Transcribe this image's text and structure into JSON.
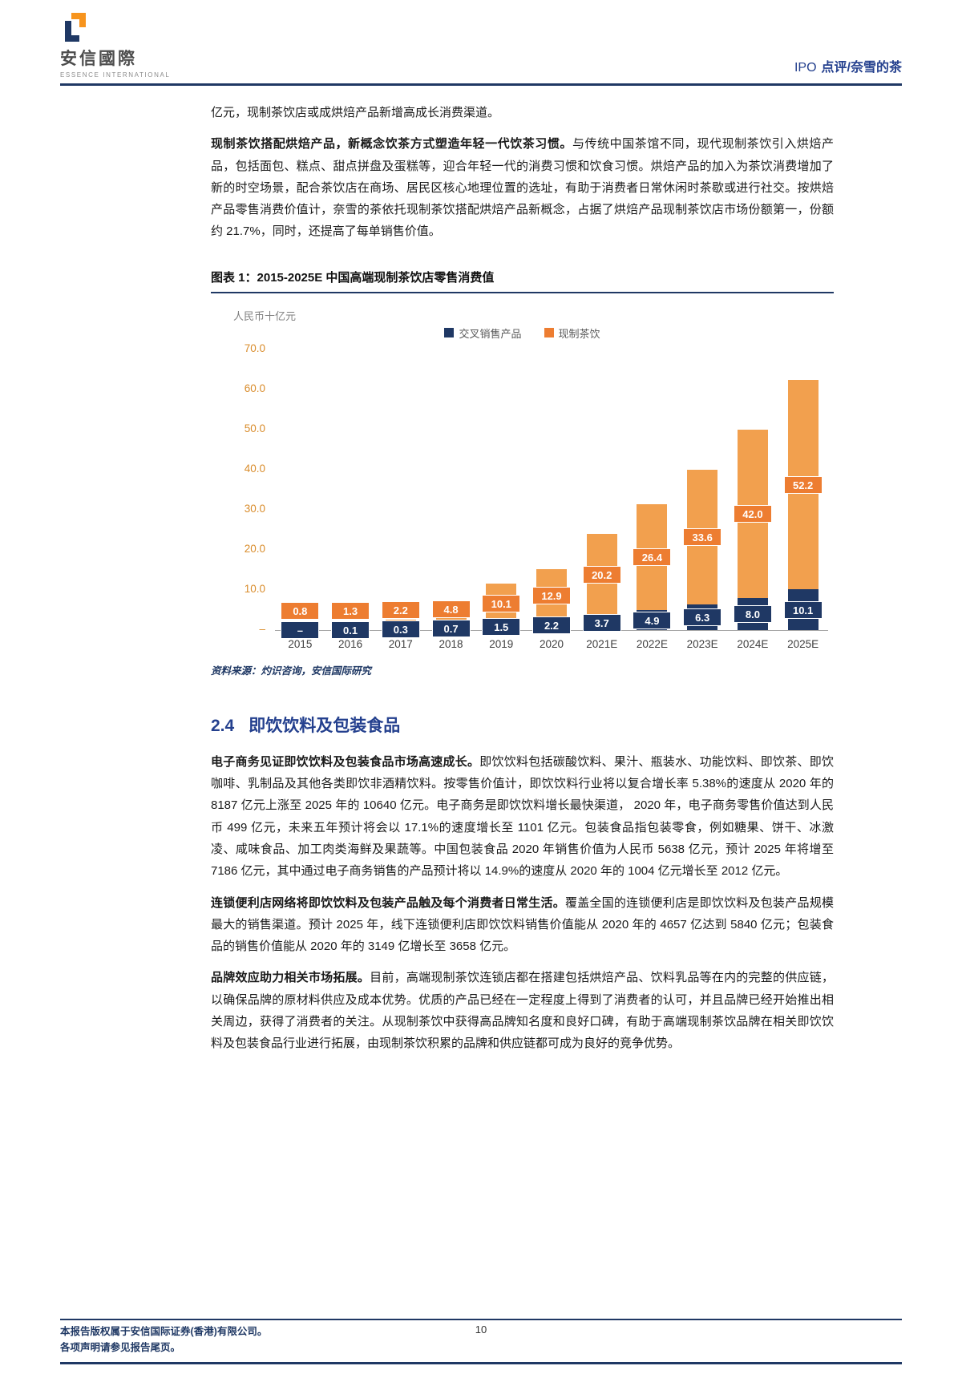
{
  "header": {
    "logo_title": "安信國際",
    "logo_subtitle": "ESSENCE INTERNATIONAL",
    "doc_type": "IPO",
    "doc_label": "点评/奈雪的茶"
  },
  "body": {
    "intro": "亿元，现制茶饮店或成烘焙产品新增高成长消费渠道。",
    "paragraphs": [
      {
        "bold": "现制茶饮搭配烘焙产品，新概念饮茶方式塑造年轻一代饮茶习惯。",
        "text": "与传统中国茶馆不同，现代现制茶饮引入烘焙产品，包括面包、糕点、甜点拼盘及蛋糕等，迎合年轻一代的消费习惯和饮食习惯。烘焙产品的加入为茶饮消费增加了新的时空场景，配合茶饮店在商场、居民区核心地理位置的选址，有助于消费者日常休闲时茶歇或进行社交。按烘焙产品零售消费价值计，奈雪的茶依托现制茶饮搭配烘焙产品新概念，占据了烘焙产品现制茶饮店市场份额第一，份额约 21.7%，同时，还提高了每单销售价值。"
      },
      {
        "bold": "电子商务见证即饮饮料及包装食品市场高速成长。",
        "text": "即饮饮料包括碳酸饮料、果汁、瓶装水、功能饮料、即饮茶、即饮咖啡、乳制品及其他各类即饮非酒精饮料。按零售价值计，即饮饮料行业将以复合增长率 5.38%的速度从 2020 年的 8187 亿元上涨至 2025 年的 10640 亿元。电子商务是即饮饮料增长最快渠道， 2020 年，电子商务零售价值达到人民币 499 亿元，未来五年预计将会以 17.1%的速度增长至 1101 亿元。包装食品指包装零食，例如糖果、饼干、冰激凌、咸味食品、加工肉类海鲜及果蔬等。中国包装食品 2020 年销售价值为人民币 5638 亿元，预计 2025 年将增至 7186 亿元，其中通过电子商务销售的产品预计将以 14.9%的速度从 2020 年的 1004 亿元增长至 2012 亿元。"
      },
      {
        "bold": "连锁便利店网络将即饮饮料及包装产品触及每个消费者日常生活。",
        "text": "覆盖全国的连锁便利店是即饮饮料及包装产品规模最大的销售渠道。预计 2025 年，线下连锁便利店即饮饮料销售价值能从 2020 年的 4657 亿达到 5840 亿元；包装食品的销售价值能从 2020 年的 3149 亿增长至 3658 亿元。"
      },
      {
        "bold": "品牌效应助力相关市场拓展。",
        "text": "目前，高端现制茶饮连锁店都在搭建包括烘焙产品、饮料乳品等在内的完整的供应链，以确保品牌的原材料供应及成本优势。优质的产品已经在一定程度上得到了消费者的认可，并且品牌已经开始推出相关周边，获得了消费者的关注。从现制茶饮中获得高品牌知名度和良好口碑，有助于高端现制茶饮品牌在相关即饮饮料及包装食品行业进行拓展，由现制茶饮积累的品牌和供应链都可成为良好的竞争优势。"
      }
    ]
  },
  "figure": {
    "title": "图表 1：2015-2025E 中国高端现制茶饮店零售消费值",
    "source": "资料来源：灼识咨询，安信国际研究"
  },
  "chart_data": {
    "type": "bar",
    "stacked": true,
    "title": "2015-2025E 中国高端现制茶饮店零售消费值",
    "unit_label": "人民币十亿元",
    "categories": [
      "2015",
      "2016",
      "2017",
      "2018",
      "2019",
      "2020",
      "2021E",
      "2022E",
      "2023E",
      "2024E",
      "2025E"
    ],
    "series": [
      {
        "name": "交叉销售产品",
        "color": "#1F3864",
        "values": [
          0,
          0.1,
          0.3,
          0.7,
          1.5,
          2.2,
          3.7,
          4.9,
          6.3,
          8.0,
          10.1
        ],
        "labels": [
          "–",
          "0.1",
          "0.3",
          "0.7",
          "1.5",
          "2.2",
          "3.7",
          "4.9",
          "6.3",
          "8.0",
          "10.1"
        ]
      },
      {
        "name": "现制茶饮",
        "color": "#F2A04E",
        "values": [
          0.8,
          1.3,
          2.2,
          4.8,
          10.1,
          12.9,
          20.2,
          26.4,
          33.6,
          42.0,
          52.2
        ],
        "labels": [
          "0.8",
          "1.3",
          "2.2",
          "4.8",
          "10.1",
          "12.9",
          "20.2",
          "26.4",
          "33.6",
          "42.0",
          "52.2"
        ]
      }
    ],
    "ylim": [
      0,
      70
    ],
    "ytick_values": [
      70,
      60,
      50,
      40,
      30,
      20,
      10,
      0
    ],
    "ytick_labels": [
      "70.0",
      "60.0",
      "50.0",
      "40.0",
      "30.0",
      "20.0",
      "10.0",
      "–"
    ],
    "legend_position": "top",
    "grid": false
  },
  "section": {
    "number": "2.4",
    "title": "即饮饮料及包装食品"
  },
  "footer": {
    "line1": "本报告版权属于安信国际证券(香港)有限公司。",
    "line2": "各项声明请参见报告尾页。",
    "page": "10"
  }
}
